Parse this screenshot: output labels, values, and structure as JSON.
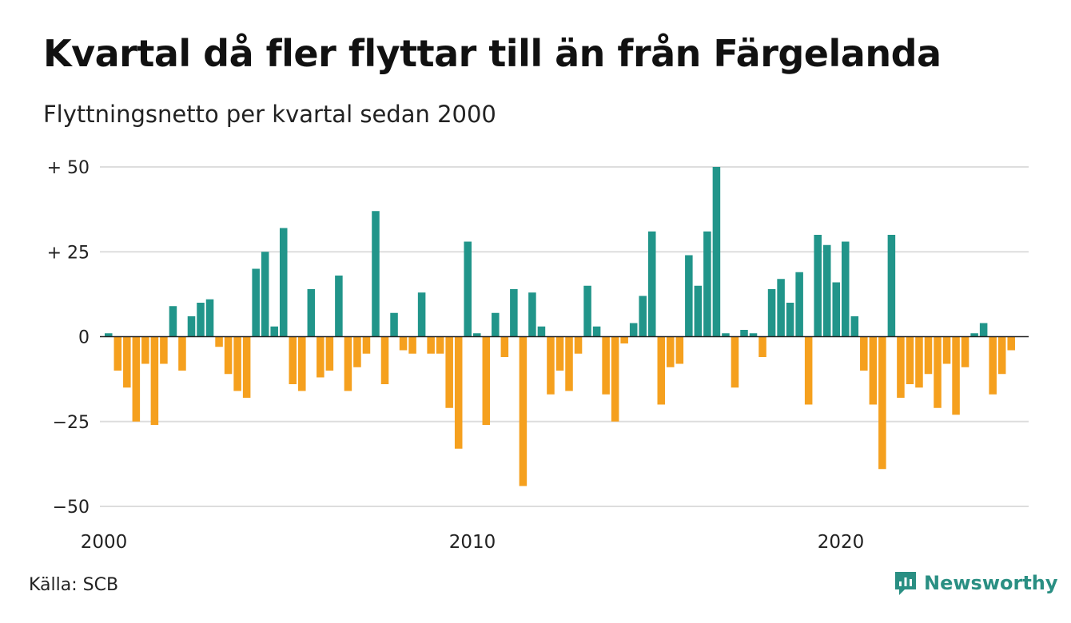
{
  "title": "Kvartal då fler flyttar till än från Färgelanda",
  "subtitle": "Flyttningsnetto per kvartal sedan 2000",
  "source": "Källa: SCB",
  "brand": {
    "name": "Newsworthy",
    "icon": "newsworthy-logo-icon",
    "color": "#2a8f83"
  },
  "chart_data": {
    "type": "bar",
    "title": "Kvartal då fler flyttar till än från Färgelanda",
    "subtitle": "Flyttningsnetto per kvartal sedan 2000",
    "ylim": [
      -50,
      50
    ],
    "grid": true,
    "yticks": [
      50,
      25,
      0,
      -25,
      -50
    ],
    "ytick_labels": [
      "+ 50",
      "+ 25",
      "0",
      "−25",
      "−50"
    ],
    "xticks": [
      2000,
      2010,
      2020
    ],
    "xtick_labels": [
      "2000",
      "2010",
      "2020"
    ],
    "start": "2000 Q1",
    "colors": {
      "positive": "#21958a",
      "negative": "#f5a01e"
    },
    "values": [
      1,
      -10,
      -15,
      -25,
      -8,
      -26,
      -8,
      9,
      -10,
      6,
      10,
      11,
      -3,
      -11,
      -16,
      -18,
      20,
      25,
      3,
      32,
      -14,
      -16,
      14,
      -12,
      -10,
      18,
      -16,
      -9,
      -5,
      37,
      -14,
      7,
      -4,
      -5,
      13,
      -5,
      -5,
      -21,
      -33,
      28,
      1,
      -26,
      7,
      -6,
      14,
      -44,
      13,
      3,
      -17,
      -10,
      -16,
      -5,
      15,
      3,
      -17,
      -25,
      -2,
      4,
      12,
      31,
      -20,
      -9,
      -8,
      24,
      15,
      31,
      50,
      1,
      -15,
      2,
      1,
      -6,
      14,
      17,
      10,
      19,
      -20,
      30,
      27,
      16,
      28,
      6,
      -10,
      -20,
      -39,
      30,
      -18,
      -14,
      -15,
      -11,
      -21,
      -8,
      -23,
      -9,
      1,
      4,
      -17,
      -11,
      -4
    ]
  }
}
